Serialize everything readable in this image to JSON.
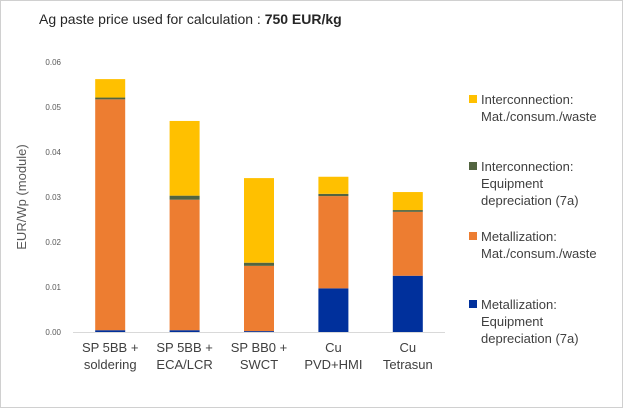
{
  "title_prefix": "Ag paste price used for calculation : ",
  "title_value": "750 EUR/kg",
  "colors": {
    "interconnection_mat": "#FFC000",
    "interconnection_equip": "#526440",
    "metallization_mat": "#ED7D31",
    "metallization_equip": "#00309C"
  },
  "legend": [
    {
      "lines": [
        "Interconnection:",
        "Mat./consum./waste"
      ],
      "color_key": "interconnection_mat"
    },
    {
      "lines": [
        "Interconnection:",
        "Equipment",
        "depreciation (7a)"
      ],
      "color_key": "interconnection_equip"
    },
    {
      "lines": [
        "Metallization:",
        "Mat./consum./waste"
      ],
      "color_key": "metallization_mat"
    },
    {
      "lines": [
        "Metallization:",
        "Equipment",
        "depreciation (7a)"
      ],
      "color_key": "metallization_equip"
    }
  ],
  "chart_data": {
    "type": "bar",
    "stacked": true,
    "title": "Ag paste price used for calculation : 750 EUR/kg",
    "xlabel": "",
    "ylabel": "EUR/Wp (module)",
    "ylim": [
      0,
      0.06
    ],
    "yticks": [
      "0.00",
      "0.01",
      "0.02",
      "0.03",
      "0.04",
      "0.05",
      "0.06"
    ],
    "grid": false,
    "legend_position": "right",
    "categories": [
      [
        "SP 5BB +",
        "soldering"
      ],
      [
        "SP 5BB +",
        "ECA/LCR"
      ],
      [
        "SP BB0 +",
        "SWCT"
      ],
      [
        "Cu",
        "PVD+HMI"
      ],
      [
        "Cu",
        "Tetrasun"
      ]
    ],
    "series": [
      {
        "name": "Metallization: Equipment depreciation (7a)",
        "color_key": "metallization_equip",
        "values": [
          0.0004,
          0.0004,
          0.0002,
          0.0097,
          0.0125
        ]
      },
      {
        "name": "Metallization: Mat./consum./waste",
        "color_key": "metallization_mat",
        "values": [
          0.0513,
          0.029,
          0.0145,
          0.0205,
          0.0142
        ]
      },
      {
        "name": "Interconnection: Equipment depreciation (7a)",
        "color_key": "interconnection_equip",
        "values": [
          0.0004,
          0.0009,
          0.0007,
          0.0005,
          0.0004
        ]
      },
      {
        "name": "Interconnection: Mat./consum./waste",
        "color_key": "interconnection_mat",
        "values": [
          0.0041,
          0.0166,
          0.0188,
          0.0038,
          0.004
        ]
      }
    ]
  }
}
